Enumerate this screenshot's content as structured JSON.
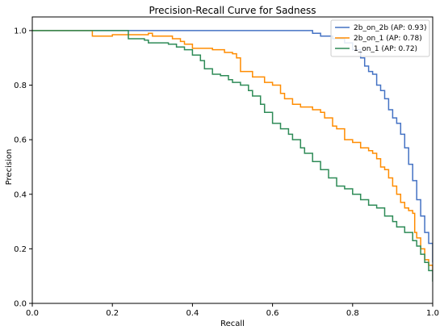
{
  "chart_data": {
    "type": "line",
    "title": "Precision-Recall Curve for Sadness",
    "xlabel": "Recall",
    "ylabel": "Precision",
    "xlim": [
      0.0,
      1.0
    ],
    "ylim": [
      0.0,
      1.05
    ],
    "xticks": [
      "0.0",
      "0.2",
      "0.4",
      "0.6",
      "0.8",
      "1.0"
    ],
    "yticks": [
      "0.0",
      "0.2",
      "0.4",
      "0.6",
      "0.8",
      "1.0"
    ],
    "grid": false,
    "legend_position": "top-right",
    "series": [
      {
        "name": "2b_on_2b (AP: 0.93)",
        "color": "#4472c4",
        "points": [
          [
            0.0,
            1.0
          ],
          [
            0.6,
            1.0
          ],
          [
            0.68,
            1.0
          ],
          [
            0.7,
            0.99
          ],
          [
            0.72,
            0.98
          ],
          [
            0.75,
            0.97
          ],
          [
            0.78,
            0.955
          ],
          [
            0.8,
            0.93
          ],
          [
            0.82,
            0.9
          ],
          [
            0.83,
            0.87
          ],
          [
            0.84,
            0.85
          ],
          [
            0.85,
            0.84
          ],
          [
            0.86,
            0.8
          ],
          [
            0.87,
            0.78
          ],
          [
            0.88,
            0.75
          ],
          [
            0.89,
            0.71
          ],
          [
            0.9,
            0.68
          ],
          [
            0.91,
            0.66
          ],
          [
            0.92,
            0.62
          ],
          [
            0.93,
            0.57
          ],
          [
            0.94,
            0.51
          ],
          [
            0.95,
            0.45
          ],
          [
            0.96,
            0.38
          ],
          [
            0.97,
            0.32
          ],
          [
            0.98,
            0.26
          ],
          [
            0.99,
            0.22
          ],
          [
            1.0,
            0.15
          ]
        ]
      },
      {
        "name": "2b_on_1 (AP: 0.78)",
        "color": "#ff8c00",
        "points": [
          [
            0.0,
            1.0
          ],
          [
            0.14,
            1.0
          ],
          [
            0.15,
            0.98
          ],
          [
            0.2,
            0.985
          ],
          [
            0.29,
            0.99
          ],
          [
            0.3,
            0.98
          ],
          [
            0.33,
            0.98
          ],
          [
            0.35,
            0.97
          ],
          [
            0.37,
            0.96
          ],
          [
            0.38,
            0.95
          ],
          [
            0.4,
            0.935
          ],
          [
            0.43,
            0.935
          ],
          [
            0.45,
            0.93
          ],
          [
            0.48,
            0.92
          ],
          [
            0.5,
            0.915
          ],
          [
            0.51,
            0.9
          ],
          [
            0.52,
            0.85
          ],
          [
            0.55,
            0.83
          ],
          [
            0.58,
            0.81
          ],
          [
            0.6,
            0.8
          ],
          [
            0.62,
            0.77
          ],
          [
            0.63,
            0.75
          ],
          [
            0.65,
            0.73
          ],
          [
            0.67,
            0.72
          ],
          [
            0.7,
            0.71
          ],
          [
            0.72,
            0.7
          ],
          [
            0.73,
            0.68
          ],
          [
            0.75,
            0.65
          ],
          [
            0.76,
            0.64
          ],
          [
            0.78,
            0.6
          ],
          [
            0.8,
            0.59
          ],
          [
            0.82,
            0.57
          ],
          [
            0.84,
            0.56
          ],
          [
            0.85,
            0.55
          ],
          [
            0.86,
            0.53
          ],
          [
            0.87,
            0.5
          ],
          [
            0.88,
            0.49
          ],
          [
            0.89,
            0.46
          ],
          [
            0.9,
            0.43
          ],
          [
            0.91,
            0.4
          ],
          [
            0.92,
            0.37
          ],
          [
            0.93,
            0.35
          ],
          [
            0.94,
            0.34
          ],
          [
            0.95,
            0.33
          ],
          [
            0.955,
            0.26
          ],
          [
            0.96,
            0.24
          ],
          [
            0.97,
            0.2
          ],
          [
            0.98,
            0.16
          ],
          [
            0.99,
            0.14
          ],
          [
            1.0,
            0.12
          ]
        ]
      },
      {
        "name": "1_on_1 (AP: 0.72)",
        "color": "#2e8b57",
        "points": [
          [
            0.0,
            1.0
          ],
          [
            0.23,
            1.0
          ],
          [
            0.24,
            0.97
          ],
          [
            0.28,
            0.965
          ],
          [
            0.29,
            0.955
          ],
          [
            0.34,
            0.95
          ],
          [
            0.36,
            0.94
          ],
          [
            0.38,
            0.93
          ],
          [
            0.4,
            0.91
          ],
          [
            0.42,
            0.89
          ],
          [
            0.43,
            0.86
          ],
          [
            0.45,
            0.84
          ],
          [
            0.47,
            0.835
          ],
          [
            0.49,
            0.82
          ],
          [
            0.5,
            0.81
          ],
          [
            0.52,
            0.8
          ],
          [
            0.54,
            0.78
          ],
          [
            0.55,
            0.76
          ],
          [
            0.57,
            0.73
          ],
          [
            0.58,
            0.7
          ],
          [
            0.6,
            0.66
          ],
          [
            0.62,
            0.64
          ],
          [
            0.64,
            0.62
          ],
          [
            0.65,
            0.6
          ],
          [
            0.67,
            0.57
          ],
          [
            0.68,
            0.55
          ],
          [
            0.7,
            0.52
          ],
          [
            0.72,
            0.49
          ],
          [
            0.74,
            0.46
          ],
          [
            0.76,
            0.43
          ],
          [
            0.78,
            0.42
          ],
          [
            0.8,
            0.4
          ],
          [
            0.82,
            0.38
          ],
          [
            0.84,
            0.36
          ],
          [
            0.86,
            0.35
          ],
          [
            0.88,
            0.32
          ],
          [
            0.9,
            0.3
          ],
          [
            0.91,
            0.28
          ],
          [
            0.93,
            0.26
          ],
          [
            0.95,
            0.23
          ],
          [
            0.96,
            0.21
          ],
          [
            0.97,
            0.18
          ],
          [
            0.98,
            0.15
          ],
          [
            0.99,
            0.12
          ],
          [
            1.0,
            0.08
          ]
        ]
      }
    ]
  }
}
